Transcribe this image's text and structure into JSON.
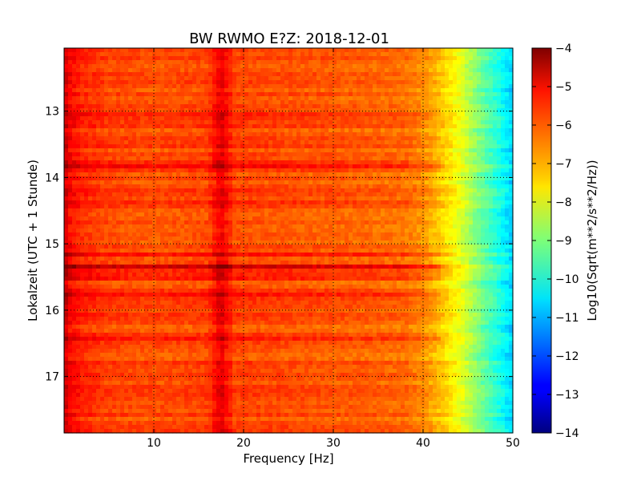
{
  "chart_data": {
    "type": "heatmap",
    "title": "BW RWMO E?Z: 2018-12-01",
    "xlabel": "Frequency [Hz]",
    "ylabel": "Lokalzeit (UTC + 1 Stunde)",
    "xlim": [
      0,
      50
    ],
    "ylim": [
      12.05,
      17.85
    ],
    "y_inverted": true,
    "x_ticks": [
      10,
      20,
      30,
      40,
      50
    ],
    "x_tick_labels": [
      "10",
      "20",
      "30",
      "40",
      "50"
    ],
    "y_ticks": [
      13,
      14,
      15,
      16,
      17
    ],
    "y_tick_labels": [
      "13",
      "14",
      "15",
      "16",
      "17"
    ],
    "grid": true,
    "colormap": "jet",
    "colorbar": {
      "label": "Log10(Sqrt(m**2/s**2/Hz))",
      "range": [
        -14,
        -4
      ],
      "ticks": [
        -4,
        -5,
        -6,
        -7,
        -8,
        -9,
        -10,
        -11,
        -12,
        -13,
        -14
      ],
      "tick_labels": [
        "−4",
        "−5",
        "−6",
        "−7",
        "−8",
        "−9",
        "−10",
        "−11",
        "−12",
        "−13",
        "−14"
      ]
    },
    "spectral_profile": {
      "frequency_hz": [
        0,
        0.5,
        2,
        5,
        10,
        16,
        17.5,
        19,
        25,
        30,
        35,
        38,
        40,
        42,
        44,
        46,
        48,
        50
      ],
      "level": [
        -4.6,
        -5.2,
        -5.6,
        -5.9,
        -6.0,
        -5.9,
        -5.0,
        -5.9,
        -6.0,
        -6.1,
        -6.2,
        -6.3,
        -6.6,
        -7.2,
        -7.9,
        -8.9,
        -9.8,
        -10.7
      ]
    },
    "strong_time_bands": [
      {
        "time": 13.04,
        "width": 0.03,
        "strength": 0.5
      },
      {
        "time": 13.8,
        "width": 0.07,
        "strength": 1.0
      },
      {
        "time": 14.4,
        "width": 0.03,
        "strength": 0.8
      },
      {
        "time": 15.15,
        "width": 0.03,
        "strength": 0.6
      },
      {
        "time": 15.35,
        "width": 0.06,
        "strength": 1.2
      },
      {
        "time": 15.5,
        "width": 0.05,
        "strength": 0.8
      },
      {
        "time": 15.75,
        "width": 0.04,
        "strength": 0.9
      },
      {
        "time": 16.45,
        "width": 0.04,
        "strength": 1.0
      },
      {
        "time": 16.88,
        "width": 0.03,
        "strength": 0.5
      }
    ]
  }
}
